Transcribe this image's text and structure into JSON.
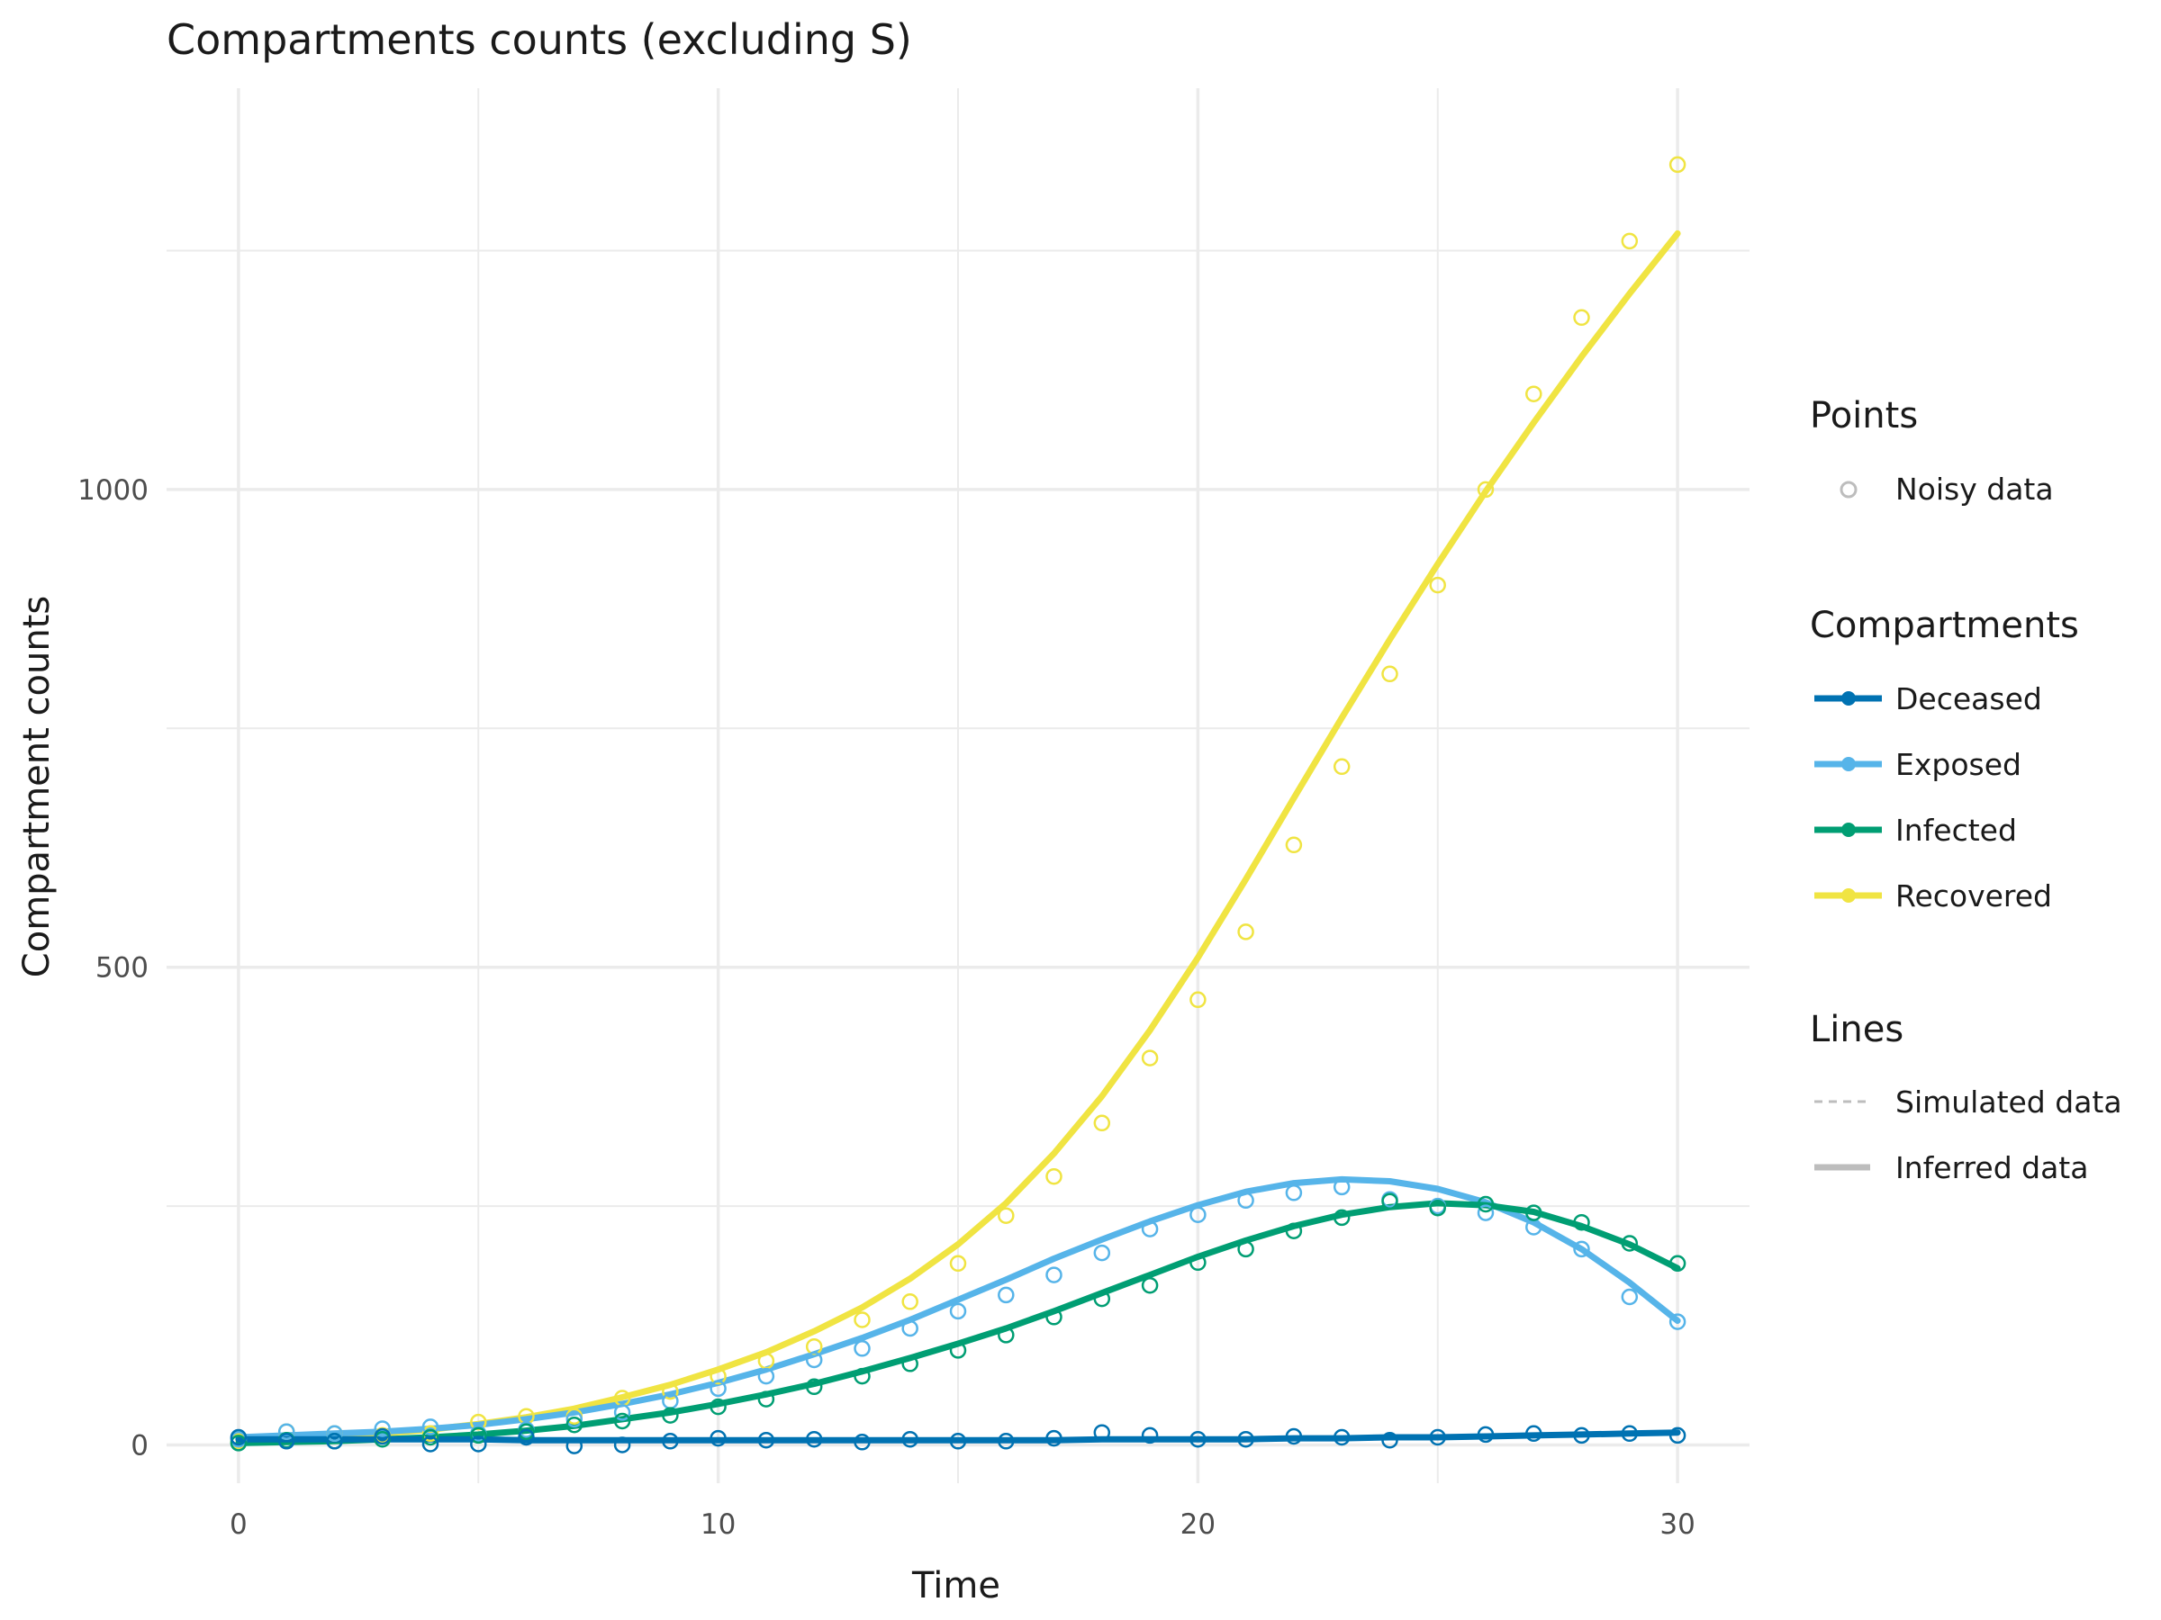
{
  "colors": {
    "Deceased": "#0072B2",
    "Exposed": "#56B4E9",
    "Infected": "#009E73",
    "Recovered": "#F0E442",
    "legend_grey": "#BDBDBD",
    "grid": "#EBEBEB",
    "text": "#1A1A1A",
    "tick_text": "#4D4D4D"
  },
  "chart_data": {
    "type": "line",
    "title": "Compartments counts (excluding S)",
    "xlabel": "Time",
    "ylabel": "Compartment counts",
    "xlim": [
      -1.5,
      31.5
    ],
    "ylim": [
      -40,
      1420
    ],
    "x_ticks": [
      0,
      10,
      20,
      30
    ],
    "y_ticks": [
      0,
      500,
      1000
    ],
    "x_minor": [
      5,
      15,
      25
    ],
    "y_minor": [
      250,
      750,
      1250
    ],
    "grid": true,
    "legend_position": "right",
    "x": [
      0,
      1,
      2,
      3,
      4,
      5,
      6,
      7,
      8,
      9,
      10,
      11,
      12,
      13,
      14,
      15,
      16,
      17,
      18,
      19,
      20,
      21,
      22,
      23,
      24,
      25,
      26,
      27,
      28,
      29,
      30
    ],
    "series": [
      {
        "name": "Recovered",
        "line": [
          5,
          7,
          9,
          12,
          16,
          22,
          29,
          38,
          50,
          63,
          79,
          97,
          119,
          144,
          174,
          210,
          253,
          305,
          365,
          434,
          510,
          592,
          677,
          761,
          843,
          922,
          998,
          1070,
          1139,
          1205,
          1268
        ],
        "points": [
          4,
          14,
          12,
          10,
          12,
          24,
          30,
          30,
          49,
          56,
          72,
          88,
          103,
          131,
          150,
          190,
          240,
          281,
          337,
          405,
          466,
          537,
          628,
          710,
          807,
          900,
          1000,
          1100,
          1180,
          1260,
          1340
        ]
      },
      {
        "name": "Exposed",
        "line": [
          8,
          10,
          12,
          14,
          17,
          21,
          27,
          34,
          43,
          53,
          65,
          79,
          95,
          112,
          131,
          152,
          173,
          195,
          215,
          234,
          251,
          265,
          274,
          278,
          276,
          268,
          254,
          233,
          205,
          170,
          130
        ],
        "points": [
          6,
          14,
          12,
          17,
          19,
          12,
          16,
          27,
          34,
          46,
          59,
          72,
          89,
          101,
          122,
          140,
          157,
          178,
          201,
          226,
          241,
          256,
          264,
          270,
          257,
          250,
          243,
          228,
          205,
          155,
          129
        ]
      },
      {
        "name": "Infected",
        "line": [
          2,
          3,
          4,
          6,
          8,
          11,
          15,
          20,
          27,
          34,
          43,
          53,
          64,
          77,
          91,
          106,
          122,
          140,
          159,
          178,
          197,
          214,
          229,
          241,
          249,
          253,
          251,
          244,
          229,
          210,
          185
        ],
        "points": [
          2,
          5,
          4,
          6,
          8,
          10,
          14,
          21,
          25,
          31,
          40,
          48,
          61,
          72,
          85,
          99,
          115,
          134,
          153,
          167,
          191,
          205,
          224,
          238,
          255,
          248,
          252,
          243,
          233,
          211,
          190
        ]
      },
      {
        "name": "Deceased",
        "line": [
          6,
          6,
          6,
          6,
          6,
          6,
          5,
          5,
          5,
          5,
          5,
          5,
          5,
          5,
          5,
          5,
          5,
          5,
          6,
          6,
          6,
          6,
          7,
          7,
          8,
          8,
          9,
          10,
          11,
          12,
          13
        ],
        "points": [
          8,
          4,
          4,
          9,
          1,
          1,
          8,
          -1,
          0,
          4,
          7,
          5,
          6,
          3,
          6,
          4,
          4,
          7,
          13,
          10,
          6,
          6,
          9,
          8,
          5,
          8,
          11,
          12,
          10,
          12,
          10
        ]
      }
    ]
  },
  "legend": {
    "points_title": "Points",
    "points_items": [
      {
        "label": "Noisy data"
      }
    ],
    "compartments_title": "Compartments",
    "compartments_items": [
      {
        "label": "Deceased",
        "key": "Deceased"
      },
      {
        "label": "Exposed",
        "key": "Exposed"
      },
      {
        "label": "Infected",
        "key": "Infected"
      },
      {
        "label": "Recovered",
        "key": "Recovered"
      }
    ],
    "lines_title": "Lines",
    "lines_items": [
      {
        "label": "Simulated data",
        "style": "dashed"
      },
      {
        "label": "Inferred data",
        "style": "solid"
      }
    ]
  }
}
